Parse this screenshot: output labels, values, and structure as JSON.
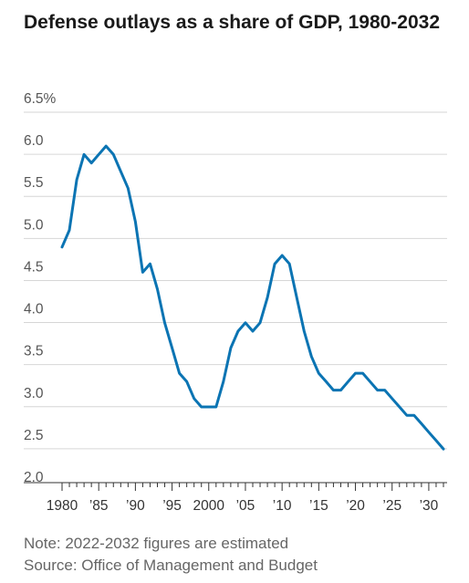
{
  "title": "Defense outlays as a share of GDP, 1980-2032",
  "notes": {
    "note": "Note: 2022-2032 figures are estimated",
    "source": "Source: Office of Management and Budget"
  },
  "chart_data": {
    "type": "line",
    "title": "Defense outlays as a share of GDP, 1980-2032",
    "xlabel": "",
    "ylabel": "",
    "xlim": [
      1980,
      2032
    ],
    "ylim": [
      2.0,
      6.5
    ],
    "grid": true,
    "yticks": [
      {
        "value": 6.5,
        "label": "6.5%"
      },
      {
        "value": 6.0,
        "label": "6.0"
      },
      {
        "value": 5.5,
        "label": "5.5"
      },
      {
        "value": 5.0,
        "label": "5.0"
      },
      {
        "value": 4.5,
        "label": "4.5"
      },
      {
        "value": 4.0,
        "label": "4.0"
      },
      {
        "value": 3.5,
        "label": "3.5"
      },
      {
        "value": 3.0,
        "label": "3.0"
      },
      {
        "value": 2.5,
        "label": "2.5"
      },
      {
        "value": 2.0,
        "label": "2.0"
      }
    ],
    "xticks": [
      {
        "value": 1980,
        "label": "1980"
      },
      {
        "value": 1985,
        "label": "’85"
      },
      {
        "value": 1990,
        "label": "’90"
      },
      {
        "value": 1995,
        "label": "’95"
      },
      {
        "value": 2000,
        "label": "2000"
      },
      {
        "value": 2005,
        "label": "’05"
      },
      {
        "value": 2010,
        "label": "’10"
      },
      {
        "value": 2015,
        "label": "’15"
      },
      {
        "value": 2020,
        "label": "’20"
      },
      {
        "value": 2025,
        "label": "’25"
      },
      {
        "value": 2030,
        "label": "’30"
      }
    ],
    "series": [
      {
        "color": "#0b74b3",
        "x": [
          1980,
          1981,
          1982,
          1983,
          1984,
          1985,
          1986,
          1987,
          1988,
          1989,
          1990,
          1991,
          1992,
          1993,
          1994,
          1995,
          1996,
          1997,
          1998,
          1999,
          2000,
          2001,
          2002,
          2003,
          2004,
          2005,
          2006,
          2007,
          2008,
          2009,
          2010,
          2011,
          2012,
          2013,
          2014,
          2015,
          2016,
          2017,
          2018,
          2019,
          2020,
          2021,
          2022,
          2023,
          2024,
          2025,
          2026,
          2027,
          2028,
          2029,
          2030,
          2031,
          2032
        ],
        "values": [
          4.8,
          5.0,
          5.6,
          5.9,
          5.8,
          5.9,
          6.0,
          5.9,
          5.7,
          5.5,
          5.1,
          4.5,
          4.6,
          4.3,
          3.9,
          3.6,
          3.3,
          3.2,
          3.0,
          2.9,
          2.9,
          2.9,
          3.2,
          3.6,
          3.8,
          3.9,
          3.8,
          3.9,
          4.2,
          4.6,
          4.7,
          4.6,
          4.2,
          3.8,
          3.5,
          3.3,
          3.2,
          3.1,
          3.1,
          3.2,
          3.3,
          3.3,
          3.2,
          3.1,
          3.1,
          3.0,
          2.9,
          2.8,
          2.8,
          2.7,
          2.6,
          2.5,
          2.4
        ]
      }
    ]
  }
}
